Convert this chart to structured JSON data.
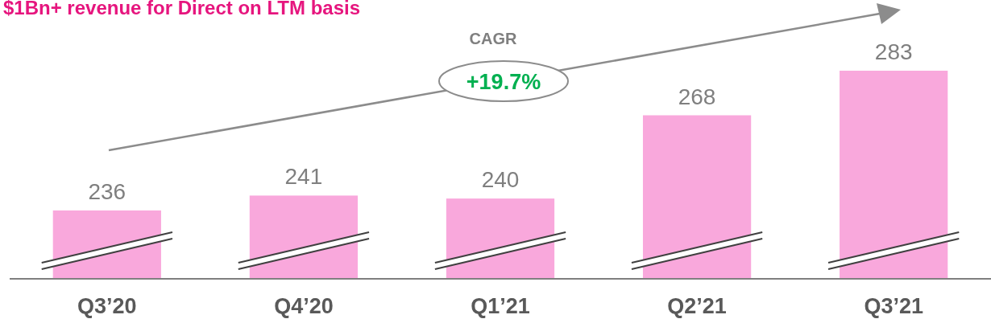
{
  "chart_data": {
    "type": "bar",
    "title": "$1Bn+ revenue for Direct on LTM basis",
    "categories": [
      "Q3’20",
      "Q4’20",
      "Q1’21",
      "Q2’21",
      "Q3’21"
    ],
    "values": [
      236,
      241,
      240,
      268,
      283
    ],
    "color": "#f9a8dc",
    "data_labels": true,
    "ylim": [
      213,
      283
    ],
    "annotations": [
      "CAGR",
      "+19.7%"
    ]
  }
}
